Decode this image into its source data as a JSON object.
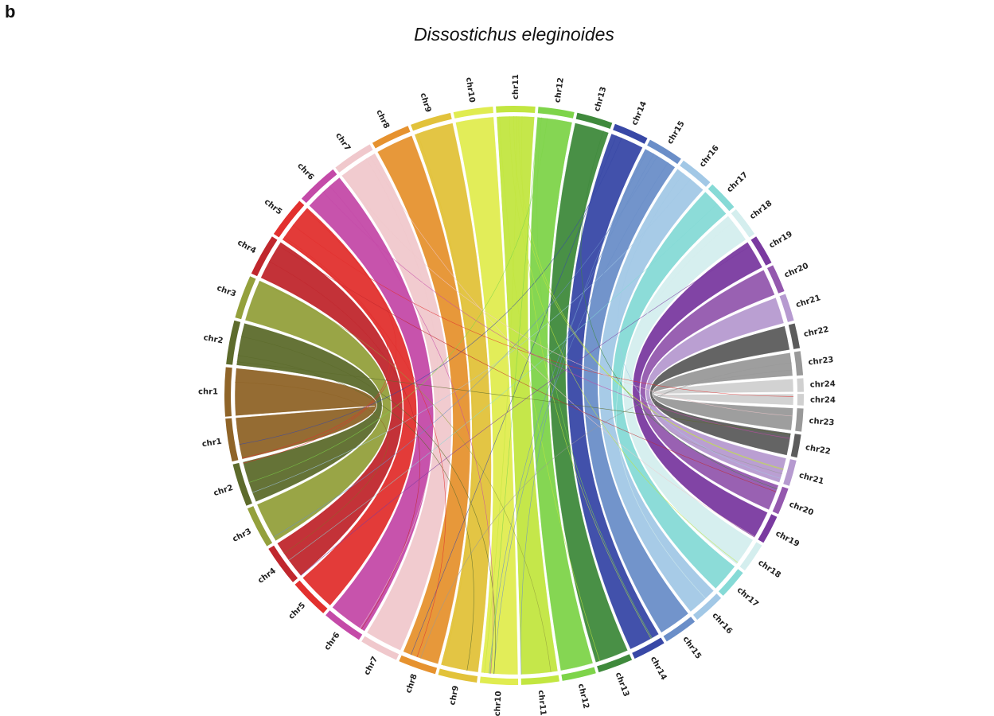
{
  "panel_label": "b",
  "title": "Dissostichus eleginoides",
  "chromosomes": [
    {
      "name": "chr1",
      "color": "#8f6428",
      "top": [
        -94.2,
        -84.4
      ],
      "bottom": [
        256.8,
        265.4
      ]
    },
    {
      "name": "chr2",
      "color": "#5d6b2c",
      "top": [
        -83.8,
        -75.0
      ],
      "bottom": [
        247.6,
        256.2
      ]
    },
    {
      "name": "chr3",
      "color": "#94a03c",
      "top": [
        -74.4,
        -65.7
      ],
      "bottom": [
        238.6,
        247.0
      ]
    },
    {
      "name": "chr4",
      "color": "#c0272d",
      "top": [
        -65.1,
        -56.7
      ],
      "bottom": [
        229.8,
        238.0
      ]
    },
    {
      "name": "chr5",
      "color": "#e2302e",
      "top": [
        -56.1,
        -47.8
      ],
      "bottom": [
        221.2,
        229.2
      ]
    },
    {
      "name": "chr6",
      "color": "#c44aa8",
      "top": [
        -47.2,
        -38.7
      ],
      "bottom": [
        212.4,
        220.6
      ]
    },
    {
      "name": "chr7",
      "color": "#f0c8cc",
      "top": [
        -38.1,
        -29.9
      ],
      "bottom": [
        204.0,
        211.8
      ]
    },
    {
      "name": "chr8",
      "color": "#e6922f",
      "top": [
        -29.3,
        -21.5
      ],
      "bottom": [
        195.8,
        203.4
      ]
    },
    {
      "name": "chr9",
      "color": "#e2c23a",
      "top": [
        -20.9,
        -12.7
      ],
      "bottom": [
        187.4,
        195.2
      ]
    },
    {
      "name": "chr10",
      "color": "#e0ec50",
      "top": [
        -12.1,
        -4.2
      ],
      "bottom": [
        179.2,
        186.8
      ]
    },
    {
      "name": "chr11",
      "color": "#c2e640",
      "top": [
        -3.6,
        4.2
      ],
      "bottom": [
        171.0,
        178.6
      ]
    },
    {
      "name": "chr12",
      "color": "#7ed44a",
      "top": [
        4.8,
        12.0
      ],
      "bottom": [
        163.6,
        170.4
      ]
    },
    {
      "name": "chr13",
      "color": "#3f8a3c",
      "top": [
        12.6,
        19.8
      ],
      "bottom": [
        156.0,
        163.0
      ]
    },
    {
      "name": "chr14",
      "color": "#3848a6",
      "top": [
        20.4,
        27.4
      ],
      "bottom": [
        148.8,
        155.4
      ]
    },
    {
      "name": "chr15",
      "color": "#6a8ec8",
      "top": [
        28.0,
        35.2
      ],
      "bottom": [
        141.4,
        148.2
      ]
    },
    {
      "name": "chr16",
      "color": "#a2c8e6",
      "top": [
        35.8,
        42.6
      ],
      "bottom": [
        134.4,
        140.8
      ]
    },
    {
      "name": "chr17",
      "color": "#86dad6",
      "top": [
        43.2,
        49.4
      ],
      "bottom": [
        127.8,
        133.8
      ]
    },
    {
      "name": "chr18",
      "color": "#d4eeee",
      "top": [
        50.0,
        56.1
      ],
      "bottom": [
        121.2,
        127.2
      ]
    },
    {
      "name": "chr19",
      "color": "#7a3aa0",
      "top": [
        56.7,
        62.7
      ],
      "bottom": [
        114.8,
        120.6
      ]
    },
    {
      "name": "chr20",
      "color": "#9458ae",
      "top": [
        63.3,
        68.9
      ],
      "bottom": [
        108.8,
        114.2
      ]
    },
    {
      "name": "chr21",
      "color": "#b69ad0",
      "top": [
        69.5,
        75.0
      ],
      "bottom": [
        103.0,
        108.2
      ]
    },
    {
      "name": "chr22",
      "color": "#5c5c5c",
      "top": [
        75.6,
        80.6
      ],
      "bottom": [
        97.8,
        102.4
      ]
    },
    {
      "name": "chr23",
      "color": "#999999",
      "top": [
        81.2,
        86.0
      ],
      "bottom": [
        92.6,
        97.2
      ]
    },
    {
      "name": "chr24",
      "color": "#d0d0d0",
      "top": [
        86.6,
        89.3
      ],
      "bottom": [
        89.7,
        92.0
      ]
    }
  ]
}
